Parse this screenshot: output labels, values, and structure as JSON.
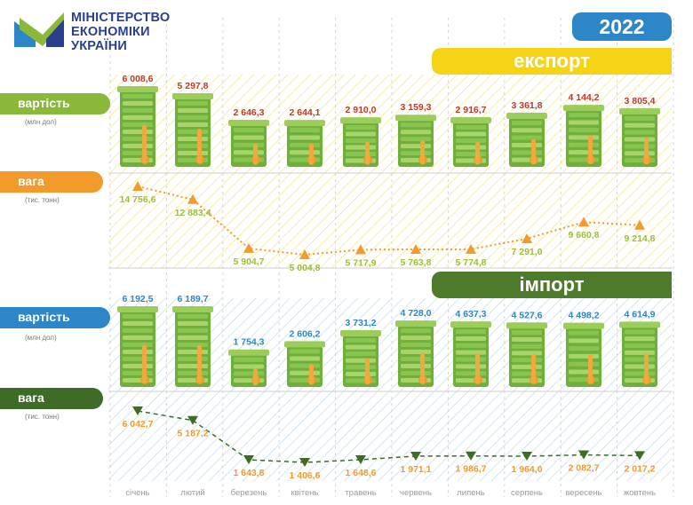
{
  "header": {
    "logo_lines": [
      "МІНІСТЕРСТВО",
      "ЕКОНОМІКИ",
      "УКРАЇНИ"
    ],
    "year": "2022"
  },
  "sections": {
    "export_title": "експорт",
    "import_title": "імпорт"
  },
  "labels": {
    "value": "вартість",
    "value_unit": "(млн дол)",
    "weight": "вага",
    "weight_unit": "(тис. тонн)"
  },
  "colors": {
    "brand_blue": "#2a3f8f",
    "year_blue": "#2d86c8",
    "export_yellow": "#f5d417",
    "export_value_text": "#c0392b",
    "export_weight_orange": "#f39a2c",
    "export_weight_text": "#9bbf3c",
    "import_green": "#4e7a2c",
    "import_value_text": "#2d86c8",
    "import_weight_text": "#f39a2c",
    "import_weight_marker": "#3e6b25",
    "tag_value_green": "#8ab83a",
    "tag_value_blue": "#2d86c8"
  },
  "chart_data": [
    {
      "type": "bar",
      "group": "export",
      "categories": [
        "січень",
        "лютий",
        "березень",
        "квітень",
        "травень",
        "червень",
        "липень",
        "серпень",
        "вересень",
        "жовтень"
      ],
      "values": [
        6008.6,
        5297.8,
        2646.3,
        2644.1,
        2910.0,
        3159.3,
        2916.7,
        3361.8,
        4144.2,
        3805.4
      ],
      "value_labels": [
        "6 008,6",
        "5 297,8",
        "2 646,3",
        "2 644,1",
        "2 910,0",
        "3 159,3",
        "2 916,7",
        "3 361,8",
        "4 144,2",
        "3 805,4"
      ]
    },
    {
      "type": "line",
      "group": "export",
      "categories": [
        "січень",
        "лютий",
        "березень",
        "квітень",
        "травень",
        "червень",
        "липень",
        "серпень",
        "вересень",
        "жовтень"
      ],
      "values": [
        14756.6,
        12883.4,
        5904.7,
        5004.8,
        5717.9,
        5763.8,
        5774.8,
        7291.0,
        9660.8,
        9214.8
      ],
      "value_labels": [
        "14 756,6",
        "12 883,4",
        "5 904,7",
        "5 004,8",
        "5 717,9",
        "5 763,8",
        "5 774,8",
        "7 291,0",
        "9 660,8",
        "9 214,8"
      ]
    },
    {
      "type": "bar",
      "group": "import",
      "categories": [
        "січень",
        "лютий",
        "березень",
        "квітень",
        "травень",
        "червень",
        "липень",
        "серпень",
        "вересень",
        "жовтень"
      ],
      "values": [
        6192.5,
        6189.7,
        1754.3,
        2606.2,
        3731.2,
        4728.0,
        4637.3,
        4527.6,
        4498.2,
        4614.9
      ],
      "value_labels": [
        "6 192,5",
        "6 189,7",
        "1 754,3",
        "2 606,2",
        "3 731,2",
        "4 728,0",
        "4 637,3",
        "4 527,6",
        "4 498,2",
        "4 614,9"
      ]
    },
    {
      "type": "line",
      "group": "import",
      "categories": [
        "січень",
        "лютий",
        "березень",
        "квітень",
        "травень",
        "червень",
        "липень",
        "серпень",
        "вересень",
        "жовтень"
      ],
      "values": [
        6042.7,
        5187.2,
        1643.8,
        1406.6,
        1648.6,
        1971.1,
        1986.7,
        1964.0,
        2082.7,
        2017.2
      ],
      "value_labels": [
        "6 042,7",
        "5 187,2",
        "1 643,8",
        "1 406,6",
        "1 648,6",
        "1 971,1",
        "1 986,7",
        "1 964,0",
        "2 082,7",
        "2 017,2"
      ]
    }
  ]
}
